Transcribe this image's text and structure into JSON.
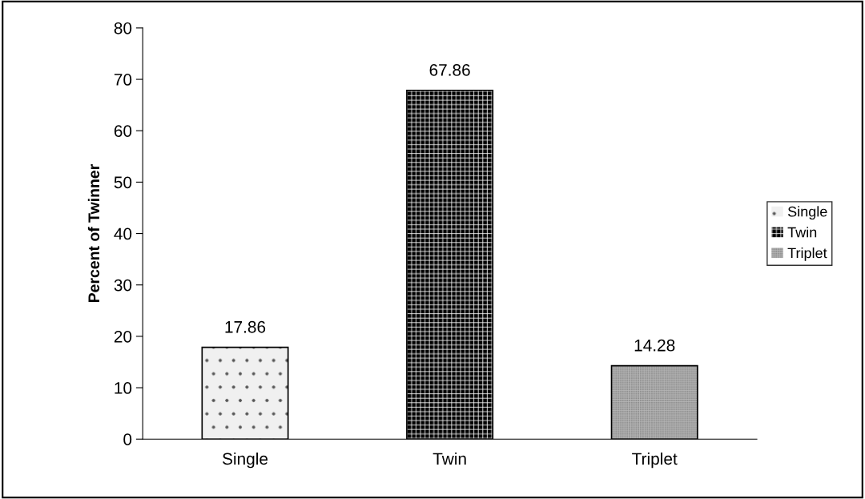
{
  "chart_data": {
    "type": "bar",
    "ylabel": "Percent of Twinner",
    "categories": [
      "Single",
      "Twin",
      "Triplet"
    ],
    "series": [
      {
        "name": "Single",
        "color": "#f0f0f0",
        "values": [
          17.86,
          null,
          null
        ]
      },
      {
        "name": "Twin",
        "color": "#000000",
        "values": [
          null,
          67.86,
          null
        ]
      },
      {
        "name": "Triplet",
        "color": "#8c8c8c",
        "values": [
          null,
          null,
          14.28
        ]
      }
    ],
    "data_labels": true,
    "ylim": [
      0,
      80
    ],
    "yticks": [
      0,
      10,
      20,
      30,
      40,
      50,
      60,
      70,
      80
    ],
    "grid": false,
    "legend": "right"
  }
}
